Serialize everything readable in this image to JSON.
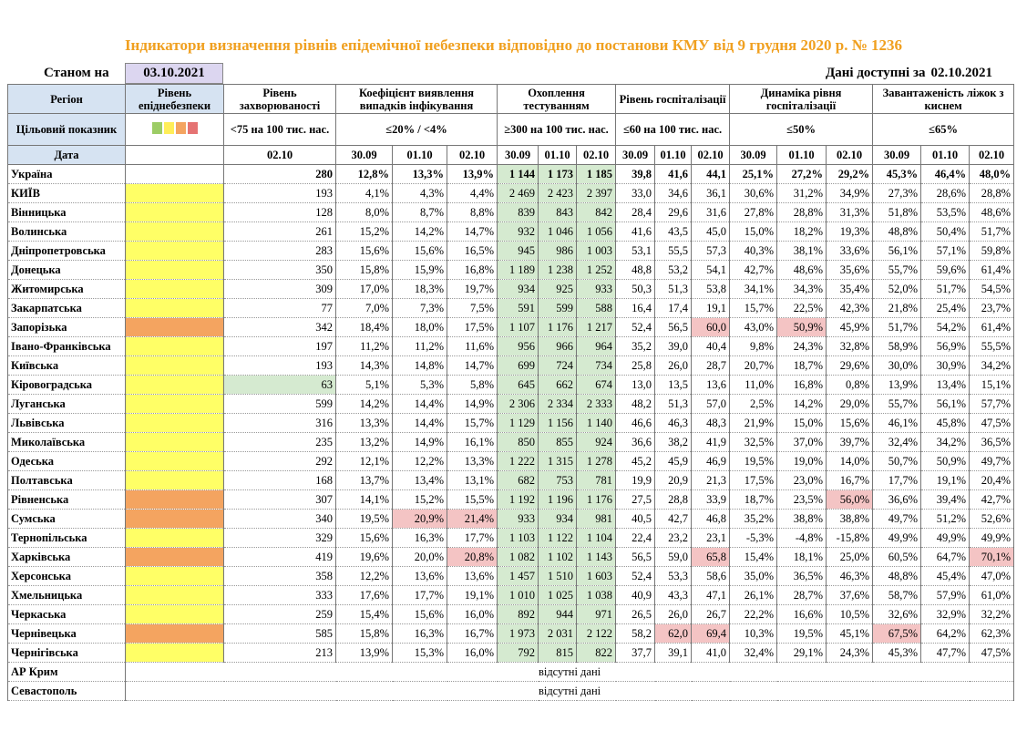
{
  "header": {
    "title": "Індикатори визначення рівнів епідемічної небезпеки відповідно до постанови КМУ від 9 грудня 2020 р. № 1236",
    "as_of_label": "Станом на",
    "as_of_date": "03.10.2021",
    "available_label": "Дані доступні за",
    "available_date": "02.10.2021"
  },
  "table": {
    "columns": [
      "Регіон",
      "Рівень епіднебезпеки",
      "Рівень захворюваності",
      "Коефіцієнт виявлення випадків інфікування",
      "Охоплення тестуванням",
      "Рівень госпіталізації",
      "Динаміка рівня госпіталізації",
      "Завантаженість ліжок з киснем"
    ],
    "target_label": "Цільовий показник",
    "targets": [
      "<75 на 100 тис. нас.",
      "≤20% / <4%",
      "≥300 на 100 тис. нас.",
      "≤60 на 100 тис. нас.",
      "≤50%",
      "≤65%"
    ],
    "date_label": "Дата",
    "dates": [
      "02.10",
      "30.09",
      "01.10",
      "02.10",
      "30.09",
      "01.10",
      "02.10",
      "30.09",
      "01.10",
      "02.10",
      "30.09",
      "01.10",
      "02.10",
      "30.09",
      "01.10",
      "02.10"
    ],
    "good_columns": [
      4,
      5,
      6
    ],
    "rows": [
      {
        "region": "Україна",
        "cells": [
          "280",
          "12,8%",
          "13,3%",
          "13,9%",
          "1 144",
          "1 173",
          "1 185",
          "39,8",
          "41,6",
          "44,1",
          "25,1%",
          "27,2%",
          "29,2%",
          "45,3%",
          "46,4%",
          "48,0%"
        ]
      },
      {
        "region": "КИЇВ",
        "level_color": "#ffff66",
        "cells": [
          "193",
          "4,1%",
          "4,3%",
          "4,4%",
          "2 469",
          "2 423",
          "2 397",
          "33,0",
          "34,6",
          "36,1",
          "30,6%",
          "31,2%",
          "34,9%",
          "27,3%",
          "28,6%",
          "28,8%"
        ]
      },
      {
        "region": "Вінницька",
        "level_color": "#ffff66",
        "cells": [
          "128",
          "8,0%",
          "8,7%",
          "8,8%",
          "839",
          "843",
          "842",
          "28,4",
          "29,6",
          "31,6",
          "27,8%",
          "28,8%",
          "31,3%",
          "51,8%",
          "53,5%",
          "48,6%"
        ]
      },
      {
        "region": "Волинська",
        "level_color": "#ffff66",
        "cells": [
          "261",
          "15,2%",
          "14,2%",
          "14,7%",
          "932",
          "1 046",
          "1 056",
          "41,6",
          "43,5",
          "45,0",
          "15,0%",
          "18,2%",
          "19,3%",
          "48,8%",
          "50,4%",
          "51,7%"
        ]
      },
      {
        "region": "Дніпропетровська",
        "level_color": "#ffff66",
        "cells": [
          "283",
          "15,6%",
          "15,6%",
          "16,5%",
          "945",
          "986",
          "1 003",
          "53,1",
          "55,5",
          "57,3",
          "40,3%",
          "38,1%",
          "33,6%",
          "56,1%",
          "57,1%",
          "59,8%"
        ]
      },
      {
        "region": "Донецька",
        "level_color": "#ffff66",
        "cells": [
          "350",
          "15,8%",
          "15,9%",
          "16,8%",
          "1 189",
          "1 238",
          "1 252",
          "48,8",
          "53,2",
          "54,1",
          "42,7%",
          "48,6%",
          "35,6%",
          "55,7%",
          "59,6%",
          "61,4%"
        ]
      },
      {
        "region": "Житомирська",
        "level_color": "#ffff66",
        "cells": [
          "309",
          "17,0%",
          "18,3%",
          "19,7%",
          "934",
          "925",
          "933",
          "50,3",
          "51,3",
          "53,8",
          "34,1%",
          "34,3%",
          "35,4%",
          "52,0%",
          "51,7%",
          "54,5%"
        ]
      },
      {
        "region": "Закарпатська",
        "level_color": "#ffff66",
        "cells": [
          "77",
          "7,0%",
          "7,3%",
          "7,5%",
          "591",
          "599",
          "588",
          "16,4",
          "17,4",
          "19,1",
          "15,7%",
          "22,5%",
          "42,3%",
          "21,8%",
          "25,4%",
          "23,7%"
        ]
      },
      {
        "region": "Запорізька",
        "level_color": "#f4a460",
        "alerts": [
          9,
          11
        ],
        "cells": [
          "342",
          "18,4%",
          "18,0%",
          "17,5%",
          "1 107",
          "1 176",
          "1 217",
          "52,4",
          "56,5",
          "60,0",
          "43,0%",
          "50,9%",
          "45,9%",
          "51,7%",
          "54,2%",
          "61,4%"
        ]
      },
      {
        "region": "Івано-Франківська",
        "level_color": "#ffff66",
        "cells": [
          "197",
          "11,2%",
          "11,2%",
          "11,6%",
          "956",
          "966",
          "964",
          "35,2",
          "39,0",
          "40,4",
          "9,8%",
          "24,3%",
          "32,8%",
          "58,9%",
          "56,9%",
          "55,5%"
        ]
      },
      {
        "region": "Київська",
        "level_color": "#ffff66",
        "cells": [
          "193",
          "14,3%",
          "14,8%",
          "14,7%",
          "699",
          "724",
          "734",
          "25,8",
          "26,0",
          "28,7",
          "20,7%",
          "18,7%",
          "29,6%",
          "30,0%",
          "30,9%",
          "34,2%"
        ]
      },
      {
        "region": "Кіровоградська",
        "level_color": "#ffff66",
        "good": [
          0
        ],
        "cells": [
          "63",
          "5,1%",
          "5,3%",
          "5,8%",
          "645",
          "662",
          "674",
          "13,0",
          "13,5",
          "13,6",
          "11,0%",
          "16,8%",
          "0,8%",
          "13,9%",
          "13,4%",
          "15,1%"
        ]
      },
      {
        "region": "Луганська",
        "level_color": "#ffff66",
        "cells": [
          "599",
          "14,2%",
          "14,4%",
          "14,9%",
          "2 306",
          "2 334",
          "2 333",
          "48,2",
          "51,3",
          "57,0",
          "2,5%",
          "14,2%",
          "29,0%",
          "55,7%",
          "56,1%",
          "57,7%"
        ]
      },
      {
        "region": "Львівська",
        "level_color": "#ffff66",
        "cells": [
          "316",
          "13,3%",
          "14,4%",
          "15,7%",
          "1 129",
          "1 156",
          "1 140",
          "46,6",
          "46,3",
          "48,3",
          "21,9%",
          "15,0%",
          "15,6%",
          "46,1%",
          "45,8%",
          "47,5%"
        ]
      },
      {
        "region": "Миколаївська",
        "level_color": "#ffff66",
        "cells": [
          "235",
          "13,2%",
          "14,9%",
          "16,1%",
          "850",
          "855",
          "924",
          "36,6",
          "38,2",
          "41,9",
          "32,5%",
          "37,0%",
          "39,7%",
          "32,4%",
          "34,2%",
          "36,5%"
        ]
      },
      {
        "region": "Одеська",
        "level_color": "#ffff66",
        "cells": [
          "292",
          "12,1%",
          "12,2%",
          "13,3%",
          "1 222",
          "1 315",
          "1 278",
          "45,2",
          "45,9",
          "46,9",
          "19,5%",
          "19,0%",
          "14,0%",
          "50,7%",
          "50,9%",
          "49,7%"
        ]
      },
      {
        "region": "Полтавська",
        "level_color": "#ffff66",
        "cells": [
          "168",
          "13,7%",
          "13,4%",
          "13,1%",
          "682",
          "753",
          "781",
          "19,9",
          "20,9",
          "21,3",
          "17,5%",
          "23,0%",
          "16,7%",
          "17,7%",
          "19,1%",
          "20,4%"
        ]
      },
      {
        "region": "Рівненська",
        "level_color": "#f4a460",
        "alerts": [
          12
        ],
        "cells": [
          "307",
          "14,1%",
          "15,2%",
          "15,5%",
          "1 192",
          "1 196",
          "1 176",
          "27,5",
          "28,8",
          "33,9",
          "18,7%",
          "23,5%",
          "56,0%",
          "36,6%",
          "39,4%",
          "42,7%"
        ]
      },
      {
        "region": "Сумська",
        "level_color": "#f4a460",
        "alerts": [
          2,
          3
        ],
        "cells": [
          "340",
          "19,5%",
          "20,9%",
          "21,4%",
          "933",
          "934",
          "981",
          "40,5",
          "42,7",
          "46,8",
          "35,2%",
          "38,8%",
          "38,8%",
          "49,7%",
          "51,2%",
          "52,6%"
        ]
      },
      {
        "region": "Тернопільська",
        "level_color": "#ffff66",
        "cells": [
          "329",
          "15,6%",
          "16,3%",
          "17,7%",
          "1 103",
          "1 122",
          "1 104",
          "22,4",
          "23,2",
          "23,1",
          "-5,3%",
          "-4,8%",
          "-15,8%",
          "49,9%",
          "49,9%",
          "49,9%"
        ]
      },
      {
        "region": "Харківська",
        "level_color": "#f4a460",
        "alerts": [
          3,
          9,
          15
        ],
        "cells": [
          "419",
          "19,6%",
          "20,0%",
          "20,8%",
          "1 082",
          "1 102",
          "1 143",
          "56,5",
          "59,0",
          "65,8",
          "15,4%",
          "18,1%",
          "25,0%",
          "60,5%",
          "64,7%",
          "70,1%"
        ]
      },
      {
        "region": "Херсонська",
        "level_color": "#ffff66",
        "cells": [
          "358",
          "12,2%",
          "13,6%",
          "13,6%",
          "1 457",
          "1 510",
          "1 603",
          "52,4",
          "53,3",
          "58,6",
          "35,0%",
          "36,5%",
          "46,3%",
          "48,8%",
          "45,4%",
          "47,0%"
        ]
      },
      {
        "region": "Хмельницька",
        "level_color": "#ffff66",
        "cells": [
          "333",
          "17,6%",
          "17,7%",
          "19,1%",
          "1 010",
          "1 025",
          "1 038",
          "40,9",
          "43,3",
          "47,1",
          "26,1%",
          "28,7%",
          "37,6%",
          "58,7%",
          "57,9%",
          "61,0%"
        ]
      },
      {
        "region": "Черкаська",
        "level_color": "#ffff66",
        "cells": [
          "259",
          "15,4%",
          "15,6%",
          "16,0%",
          "892",
          "944",
          "971",
          "26,5",
          "26,0",
          "26,7",
          "22,2%",
          "16,6%",
          "10,5%",
          "32,6%",
          "32,9%",
          "32,2%"
        ]
      },
      {
        "region": "Чернівецька",
        "level_color": "#f4a460",
        "alerts": [
          8,
          9,
          13
        ],
        "cells": [
          "585",
          "15,8%",
          "16,3%",
          "16,7%",
          "1 973",
          "2 031",
          "2 122",
          "58,2",
          "62,0",
          "69,4",
          "10,3%",
          "19,5%",
          "45,1%",
          "67,5%",
          "64,2%",
          "62,3%"
        ]
      },
      {
        "region": "Чернігівська",
        "level_color": "#ffff66",
        "cells": [
          "213",
          "13,9%",
          "15,3%",
          "16,0%",
          "792",
          "815",
          "822",
          "37,7",
          "39,1",
          "41,0",
          "32,4%",
          "29,1%",
          "24,3%",
          "45,3%",
          "47,7%",
          "47,5%"
        ]
      }
    ],
    "missing_rows": [
      {
        "region": "АР Крим",
        "note": "відсутні дані"
      },
      {
        "region": "Севастополь",
        "note": "відсутні дані"
      }
    ]
  }
}
